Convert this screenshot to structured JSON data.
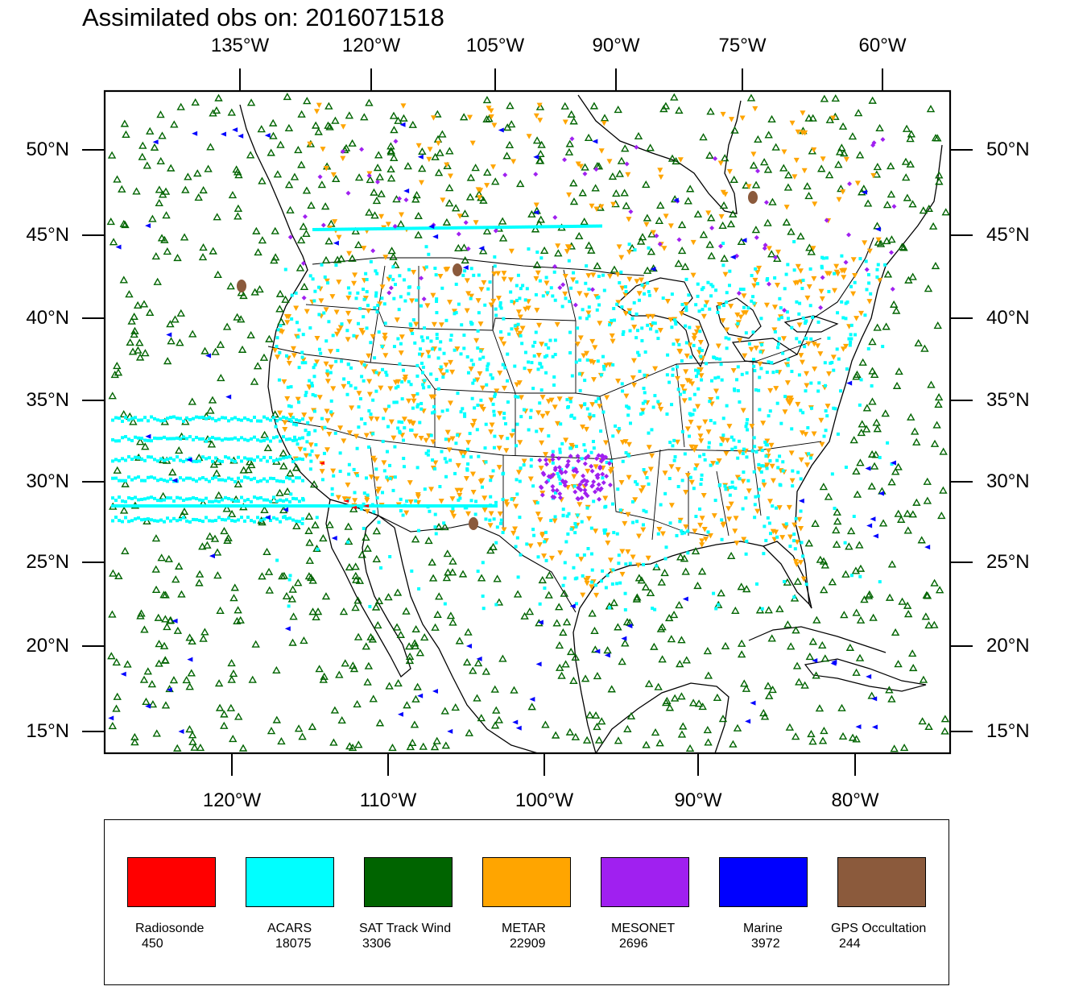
{
  "title": "Assimilated obs on: 2016071518",
  "map": {
    "projection": "lambert-conformal",
    "lon_range": [
      -130,
      -60
    ],
    "lat_range": [
      14,
      54
    ],
    "top_ticks": [
      "135°W",
      "120°W",
      "105°W",
      "90°W",
      "75°W",
      "60°W"
    ],
    "bottom_ticks": [
      "120°W",
      "110°W",
      "100°W",
      "90°W",
      "80°W"
    ],
    "left_ticks": [
      "50°N",
      "45°N",
      "40°N",
      "35°N",
      "30°N",
      "25°N",
      "20°N",
      "15°N"
    ],
    "right_ticks": [
      "50°N",
      "45°N",
      "40°N",
      "35°N",
      "30°N",
      "25°N",
      "20°N",
      "15°N"
    ]
  },
  "legend": [
    {
      "label": "Radiosonde",
      "count": "450",
      "color": "#ff0000",
      "marker": "red-arrow"
    },
    {
      "label": "ACARS",
      "count": "18075",
      "color": "#00ffff",
      "marker": "cyan-square"
    },
    {
      "label": "SAT Track Wind",
      "count": "3306",
      "color": "#006400",
      "marker": "green-triangle-up"
    },
    {
      "label": "METAR",
      "count": "22909",
      "color": "#ffa500",
      "marker": "orange-triangle-down"
    },
    {
      "label": "MESONET",
      "count": "2696",
      "color": "#a020f0",
      "marker": "purple-diamond"
    },
    {
      "label": "Marine",
      "count": "3972",
      "color": "#0000ff",
      "marker": "blue-triangle-left"
    },
    {
      "label": "GPS Occultation",
      "count": "244",
      "color": "#8b5a3c",
      "marker": "brown-ellipse"
    }
  ]
}
